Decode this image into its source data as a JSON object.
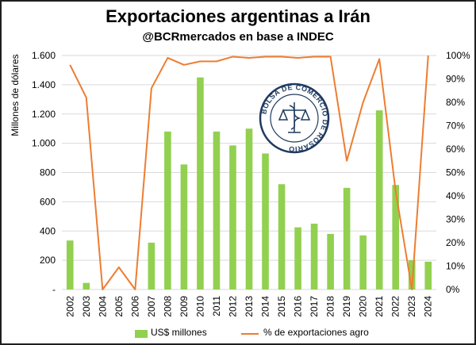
{
  "header": {
    "title": "Exportaciones argentinas a Irán",
    "subtitle": "@BCRmercados en base a INDEC"
  },
  "seal": {
    "text": "BOLSA DE COMERCIO DE ROSARIO"
  },
  "colors": {
    "bars": "#92d050",
    "line": "#ed7d31",
    "grid": "#d9d9d9",
    "text": "#000000"
  },
  "chart_data": {
    "type": "bar+line",
    "title": "Exportaciones argentinas a Irán",
    "subtitle": "@BCRmercados en base a INDEC",
    "ylabel": "Millones de dólares",
    "categories": [
      "2002",
      "2003",
      "2004",
      "2005",
      "2006",
      "2007",
      "2008",
      "2009",
      "2010",
      "2011",
      "2012",
      "2013",
      "2014",
      "2015",
      "2016",
      "2017",
      "2018",
      "2019",
      "2020",
      "2021",
      "2022",
      "2023",
      "2024"
    ],
    "series": [
      {
        "name": "US$ millones",
        "type": "bar",
        "axis": "left",
        "values": [
          335,
          45,
          0,
          0,
          0,
          320,
          1080,
          855,
          1450,
          1080,
          985,
          1100,
          930,
          720,
          425,
          450,
          380,
          695,
          370,
          1225,
          715,
          200,
          190
        ]
      },
      {
        "name": "% de exportaciones agro",
        "type": "line",
        "axis": "right",
        "values": [
          96,
          82,
          0,
          9.5,
          0,
          86,
          99,
          96,
          97.5,
          97.5,
          99.5,
          99,
          99.5,
          99.5,
          99,
          99.5,
          99.5,
          55,
          80,
          98.5,
          42,
          0,
          100
        ]
      }
    ],
    "left_axis": {
      "ylim": [
        0,
        1600
      ],
      "ticks": [
        0,
        200,
        400,
        600,
        800,
        1000,
        1200,
        1400,
        1600
      ],
      "tick_labels": [
        "-",
        "200",
        "400",
        "600",
        "800",
        "1.000",
        "1.200",
        "1.400",
        "1.600"
      ]
    },
    "right_axis": {
      "ylim": [
        0,
        100
      ],
      "ticks": [
        0,
        10,
        20,
        30,
        40,
        50,
        60,
        70,
        80,
        90,
        100
      ],
      "tick_labels": [
        "0%",
        "10%",
        "20%",
        "30%",
        "40%",
        "50%",
        "60%",
        "70%",
        "80%",
        "90%",
        "100%"
      ]
    },
    "grid": true,
    "legend_position": "bottom"
  }
}
